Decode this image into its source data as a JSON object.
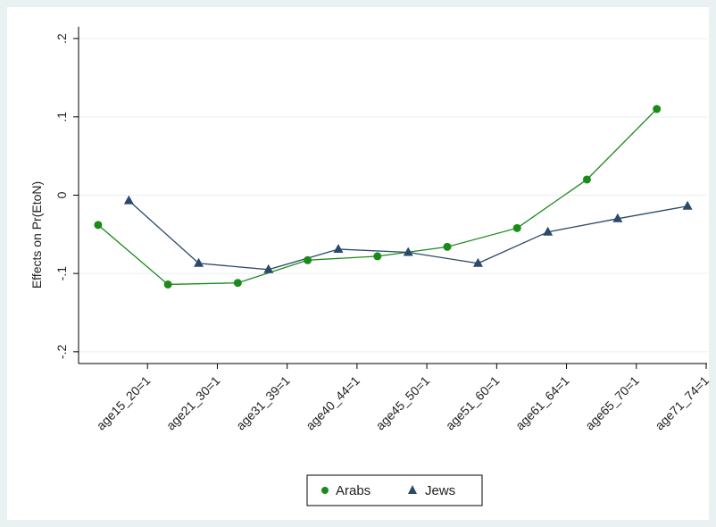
{
  "chart_data": {
    "type": "line",
    "ylabel": "Effects on Pr(EtoN)",
    "ylim": [
      -0.215,
      0.215
    ],
    "yticks": [
      -0.2,
      -0.1,
      0,
      0.1,
      0.2
    ],
    "ytick_labels": [
      "-.2",
      "-.1",
      "0",
      ".1",
      ".2"
    ],
    "categories": [
      "age15_20=1",
      "age21_30=1",
      "age31_39=1",
      "age40_44=1",
      "age45_50=1",
      "age51_60=1",
      "age61_64=1",
      "age65_70=1",
      "age71_74=1"
    ],
    "grid": "horizontal",
    "legend_position": "bottom",
    "series": [
      {
        "name": "Arabs",
        "marker": "circle",
        "color": "#1a8a1a",
        "values": [
          -0.038,
          -0.114,
          -0.112,
          -0.083,
          -0.078,
          -0.066,
          -0.042,
          0.02,
          0.11
        ]
      },
      {
        "name": "Jews",
        "marker": "triangle",
        "color": "#2b4a6a",
        "values": [
          -0.007,
          -0.087,
          -0.095,
          -0.069,
          -0.073,
          -0.087,
          -0.047,
          -0.03,
          -0.014
        ]
      }
    ]
  }
}
